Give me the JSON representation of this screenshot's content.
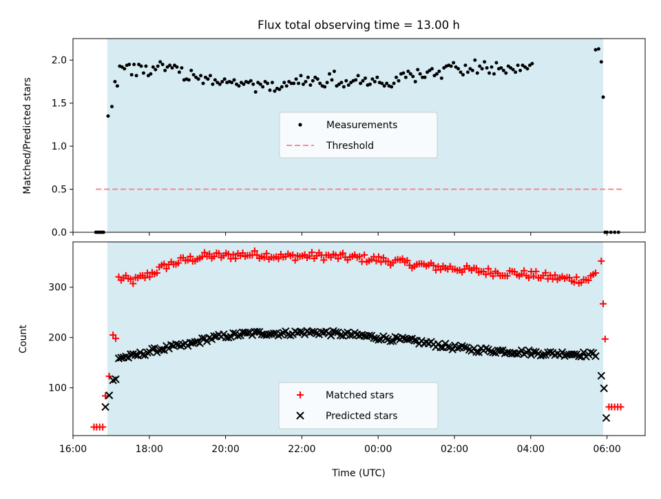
{
  "chart_data": [
    {
      "type": "scatter",
      "panel": "top",
      "title": "Flux total observing time = 13.00 h",
      "xlabel": "",
      "ylabel": "Matched/Predicted stars",
      "xlim": [
        16.0,
        31.0
      ],
      "ylim": [
        0.0,
        2.25
      ],
      "yticks": [
        0.0,
        0.5,
        1.0,
        1.5,
        2.0
      ],
      "ytick_labels": [
        "0.0",
        "0.5",
        "1.0",
        "1.5",
        "2.0"
      ],
      "observing_window": [
        16.9,
        29.9
      ],
      "legend": {
        "placement": "center",
        "entries": [
          "Measurements",
          "Threshold"
        ]
      },
      "threshold": {
        "name": "Threshold",
        "value": 0.5,
        "x_range": [
          16.6,
          30.4
        ],
        "color": "#ff7f7f"
      },
      "measurements": {
        "name": "Measurements",
        "color": "#000000",
        "zeros_before": [
          16.6,
          16.65,
          16.7,
          16.75,
          16.8
        ],
        "zeros_after": [
          29.95,
          30.0,
          30.1,
          30.2,
          30.3
        ],
        "edge_points": [
          [
            16.92,
            1.35
          ],
          [
            17.02,
            1.46
          ],
          [
            29.9,
            1.57
          ]
        ],
        "start": 17.1,
        "step": 0.0625,
        "y": [
          1.75,
          1.7,
          1.93,
          1.92,
          1.9,
          1.94,
          1.95,
          1.83,
          1.95,
          1.82,
          1.95,
          1.93,
          1.85,
          1.93,
          1.82,
          1.84,
          1.92,
          1.89,
          1.93,
          1.98,
          1.95,
          1.88,
          1.92,
          1.94,
          1.91,
          1.94,
          1.92,
          1.86,
          1.91,
          1.77,
          1.78,
          1.77,
          1.88,
          1.83,
          1.8,
          1.78,
          1.82,
          1.73,
          1.8,
          1.78,
          1.82,
          1.72,
          1.77,
          1.74,
          1.72,
          1.75,
          1.78,
          1.74,
          1.75,
          1.74,
          1.77,
          1.72,
          1.7,
          1.74,
          1.72,
          1.75,
          1.74,
          1.76,
          1.72,
          1.63,
          1.74,
          1.72,
          1.69,
          1.75,
          1.73,
          1.65,
          1.74,
          1.64,
          1.67,
          1.66,
          1.69,
          1.74,
          1.7,
          1.75,
          1.73,
          1.73,
          1.78,
          1.73,
          1.82,
          1.72,
          1.75,
          1.8,
          1.71,
          1.76,
          1.8,
          1.78,
          1.73,
          1.7,
          1.69,
          1.74,
          1.84,
          1.77,
          1.87,
          1.7,
          1.72,
          1.74,
          1.69,
          1.76,
          1.71,
          1.74,
          1.76,
          1.77,
          1.82,
          1.73,
          1.76,
          1.79,
          1.71,
          1.72,
          1.78,
          1.75,
          1.8,
          1.74,
          1.73,
          1.7,
          1.73,
          1.7,
          1.69,
          1.73,
          1.8,
          1.76,
          1.84,
          1.85,
          1.8,
          1.87,
          1.84,
          1.81,
          1.75,
          1.89,
          1.84,
          1.8,
          1.8,
          1.86,
          1.88,
          1.9,
          1.82,
          1.84,
          1.87,
          1.79,
          1.91,
          1.93,
          1.94,
          1.93,
          1.97,
          1.92,
          1.9,
          1.86,
          1.83,
          1.94,
          1.86,
          1.9,
          1.88,
          2.0,
          1.85,
          1.93,
          1.9,
          1.98,
          1.91,
          1.85,
          1.92,
          1.84,
          1.97,
          1.9,
          1.91,
          1.88,
          1.85,
          1.93,
          1.91,
          1.89,
          1.86,
          1.94,
          1.88,
          1.94,
          1.92,
          1.9,
          1.94,
          1.96
        ]
      },
      "peak_points": [
        [
          29.7,
          2.12
        ],
        [
          29.78,
          2.13
        ],
        [
          29.85,
          1.98
        ]
      ]
    },
    {
      "type": "scatter",
      "panel": "bottom",
      "xlabel": "Time (UTC)",
      "ylabel": "Count",
      "xlim": [
        16.0,
        31.0
      ],
      "ylim": [
        5,
        390
      ],
      "yticks": [
        100,
        200,
        300
      ],
      "ytick_labels": [
        "100",
        "200",
        "300"
      ],
      "xticks": [
        16,
        18,
        20,
        22,
        24,
        26,
        28,
        30
      ],
      "xtick_labels": [
        "16:00",
        "18:00",
        "20:00",
        "22:00",
        "00:00",
        "02:00",
        "04:00",
        "06:00"
      ],
      "observing_window": [
        16.9,
        29.9
      ],
      "legend": {
        "placement": "bottom-center",
        "entries": [
          "Matched stars",
          "Predicted stars"
        ]
      },
      "matched_stars": {
        "name": "Matched stars",
        "color": "#ff0000",
        "edge_points": [
          [
            16.55,
            22
          ],
          [
            16.62,
            22
          ],
          [
            16.7,
            22
          ],
          [
            16.78,
            22
          ],
          [
            16.85,
            84
          ],
          [
            16.95,
            123
          ],
          [
            17.05,
            205
          ],
          [
            17.12,
            198
          ],
          [
            29.85,
            352
          ],
          [
            29.9,
            267
          ],
          [
            29.95,
            197
          ],
          [
            30.05,
            62
          ],
          [
            30.12,
            62
          ],
          [
            30.2,
            62
          ],
          [
            30.28,
            62
          ],
          [
            30.36,
            62
          ]
        ],
        "trend": [
          [
            17.2,
            318
          ],
          [
            17.6,
            312
          ],
          [
            18.0,
            325
          ],
          [
            18.5,
            345
          ],
          [
            19.0,
            355
          ],
          [
            19.5,
            362
          ],
          [
            20.0,
            362
          ],
          [
            20.5,
            365
          ],
          [
            21.0,
            365
          ],
          [
            21.5,
            360
          ],
          [
            22.0,
            362
          ],
          [
            22.5,
            362
          ],
          [
            23.0,
            360
          ],
          [
            23.5,
            358
          ],
          [
            24.0,
            355
          ],
          [
            24.5,
            350
          ],
          [
            25.0,
            345
          ],
          [
            25.5,
            340
          ],
          [
            26.0,
            338
          ],
          [
            26.5,
            333
          ],
          [
            27.0,
            330
          ],
          [
            27.5,
            328
          ],
          [
            28.0,
            325
          ],
          [
            28.5,
            320
          ],
          [
            29.0,
            316
          ],
          [
            29.5,
            315
          ],
          [
            29.75,
            330
          ]
        ]
      },
      "predicted_stars": {
        "name": "Predicted stars",
        "color": "#000000",
        "edge_points": [
          [
            16.85,
            62
          ],
          [
            16.95,
            85
          ],
          [
            17.05,
            115
          ],
          [
            17.12,
            117
          ],
          [
            29.85,
            124
          ],
          [
            29.92,
            99
          ],
          [
            29.98,
            40
          ]
        ],
        "trend": [
          [
            17.2,
            160
          ],
          [
            17.6,
            163
          ],
          [
            18.0,
            172
          ],
          [
            18.5,
            180
          ],
          [
            19.0,
            185
          ],
          [
            19.5,
            197
          ],
          [
            20.0,
            203
          ],
          [
            20.5,
            207
          ],
          [
            21.0,
            209
          ],
          [
            21.5,
            208
          ],
          [
            22.0,
            210
          ],
          [
            22.5,
            210
          ],
          [
            23.0,
            207
          ],
          [
            23.5,
            204
          ],
          [
            24.0,
            200
          ],
          [
            24.5,
            196
          ],
          [
            25.0,
            192
          ],
          [
            25.5,
            186
          ],
          [
            26.0,
            180
          ],
          [
            26.5,
            176
          ],
          [
            27.0,
            174
          ],
          [
            27.5,
            172
          ],
          [
            28.0,
            170
          ],
          [
            28.5,
            168
          ],
          [
            29.0,
            168
          ],
          [
            29.5,
            166
          ],
          [
            29.75,
            166
          ]
        ]
      }
    }
  ]
}
